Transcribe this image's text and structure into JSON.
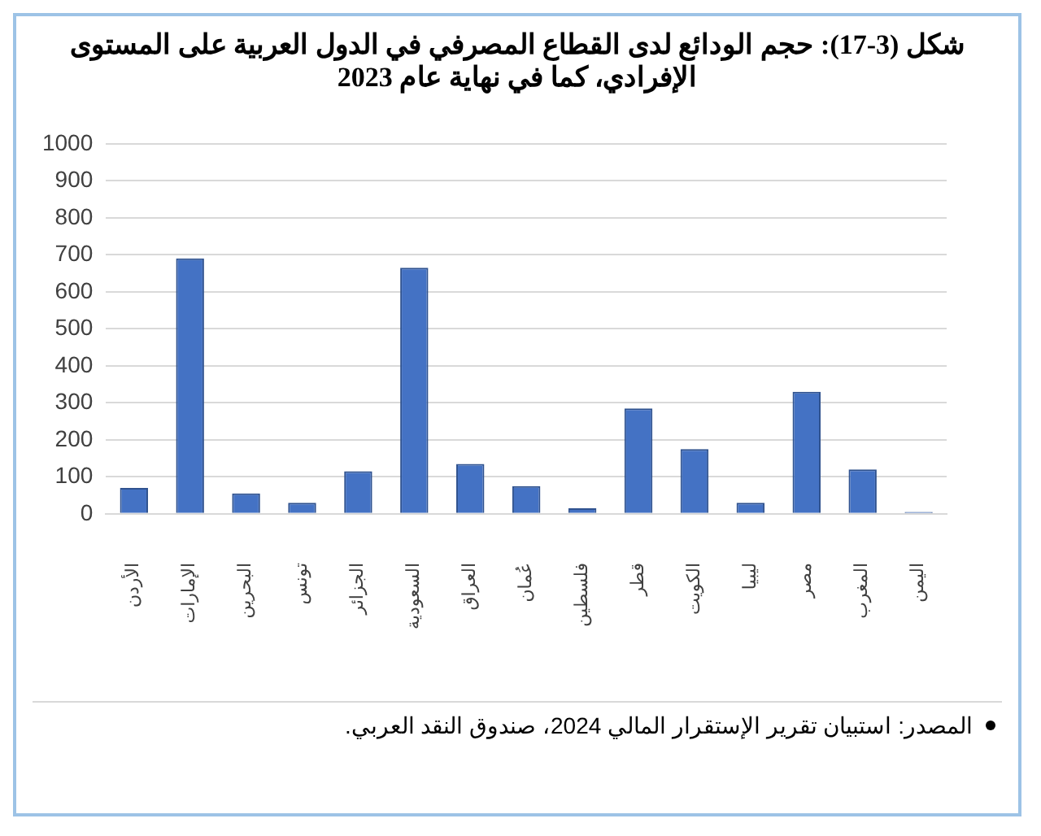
{
  "chart_data": {
    "type": "bar",
    "title": "شكل (3-17): حجم الودائع لدى القطاع المصرفي في الدول العربية على المستوى الإفرادي، كما في نهاية عام 2023",
    "categories": [
      "الأردن",
      "الإمارات",
      "البحرين",
      "تونس",
      "الجزائر",
      "السعودية",
      "العراق",
      "عُمان",
      "فلسطين",
      "قطر",
      "الكويت",
      "ليبيا",
      "مصر",
      "المغرب",
      "اليمن"
    ],
    "values": [
      70,
      690,
      55,
      30,
      115,
      665,
      135,
      75,
      15,
      285,
      175,
      30,
      330,
      120,
      5
    ],
    "color": "#4472c4",
    "ylim": [
      0,
      1000
    ],
    "yticks": [
      0,
      100,
      200,
      300,
      400,
      500,
      600,
      700,
      800,
      900,
      1000
    ],
    "grid": "y",
    "annotations": [
      "المصدر: استبيان تقرير الإستقرار المالي 2024، صندوق النقد العربي."
    ]
  }
}
